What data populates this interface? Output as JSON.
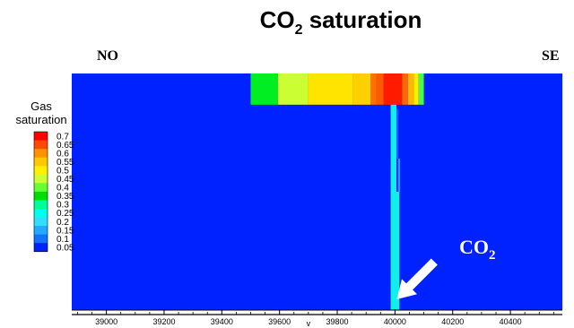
{
  "chart_data": {
    "type": "heatmap",
    "title": "CO",
    "title_subscript": "2",
    "title_suffix": " saturation",
    "left_label": "NO",
    "right_label": "SE",
    "annotation": {
      "text": "CO",
      "subscript": "2",
      "points_to_x": 40000
    },
    "xlim": [
      38880,
      40580
    ],
    "xticks": [
      39000,
      39200,
      39400,
      39600,
      39800,
      40000,
      40200,
      40400
    ],
    "xtick_labels": [
      "39000",
      "39200",
      "39400",
      "39600",
      "39800",
      "40000",
      "40200",
      "40400"
    ],
    "x_axis_mark": "v",
    "x_axis_mark_at": 39700,
    "depth_range": [
      0,
      1
    ],
    "background_value": 0.05,
    "legend": {
      "title_line1": "Gas",
      "title_line2": "saturation",
      "levels": [
        "0.7",
        "0.65",
        "0.6",
        "0.55",
        "0.5",
        "0.45",
        "0.4",
        "0.35",
        "0.3",
        "0.25",
        "0.2",
        "0.15",
        "0.1",
        "0.05"
      ],
      "colors": [
        "#ff0000",
        "#ff4a00",
        "#ff9200",
        "#ffc800",
        "#fff000",
        "#ccff33",
        "#66ff33",
        "#00dd00",
        "#00ff99",
        "#00ffee",
        "#33ddff",
        "#22aaff",
        "#1470ff",
        "#0022ff"
      ]
    },
    "cells": [
      {
        "x0": 39500,
        "x1": 39595,
        "d0": 0,
        "d1": 0.132,
        "value": 0.4,
        "color": "#00ee22"
      },
      {
        "x0": 39595,
        "x1": 39700,
        "d0": 0,
        "d1": 0.132,
        "value": 0.5,
        "color": "#ccff33"
      },
      {
        "x0": 39700,
        "x1": 39855,
        "d0": 0,
        "d1": 0.132,
        "value": 0.55,
        "color": "#ffe400"
      },
      {
        "x0": 39855,
        "x1": 39915,
        "d0": 0,
        "d1": 0.132,
        "value": 0.6,
        "color": "#ffd000"
      },
      {
        "x0": 39915,
        "x1": 39935,
        "d0": 0,
        "d1": 0.132,
        "value": 0.65,
        "color": "#ff7000"
      },
      {
        "x0": 39935,
        "x1": 39960,
        "d0": 0,
        "d1": 0.132,
        "value": 0.65,
        "color": "#ff5a00"
      },
      {
        "x0": 39960,
        "x1": 40025,
        "d0": 0,
        "d1": 0.132,
        "value": 0.7,
        "color": "#ff1a00"
      },
      {
        "x0": 40025,
        "x1": 40045,
        "d0": 0,
        "d1": 0.132,
        "value": 0.65,
        "color": "#ff6a00"
      },
      {
        "x0": 40045,
        "x1": 40065,
        "d0": 0,
        "d1": 0.132,
        "value": 0.6,
        "color": "#ffb800"
      },
      {
        "x0": 40065,
        "x1": 40082,
        "d0": 0,
        "d1": 0.132,
        "value": 0.5,
        "color": "#ffee00"
      },
      {
        "x0": 40082,
        "x1": 40100,
        "d0": 0,
        "d1": 0.132,
        "value": 0.4,
        "color": "#44ff44"
      },
      {
        "x0": 39985,
        "x1": 40005,
        "d0": 0.132,
        "d1": 1,
        "value": 0.25,
        "color": "#11eeee"
      },
      {
        "x0": 40005,
        "x1": 40015,
        "d0": 0.5,
        "d1": 1,
        "value": 0.25,
        "color": "#11eeee"
      },
      {
        "x0": 40010,
        "x1": 40018,
        "d0": 0.36,
        "d1": 0.5,
        "value": 0.15,
        "color": "#2299ff"
      },
      {
        "x0": 40005,
        "x1": 40012,
        "d0": 0.15,
        "d1": 0.36,
        "value": 0.1,
        "color": "#1166ff"
      }
    ]
  }
}
